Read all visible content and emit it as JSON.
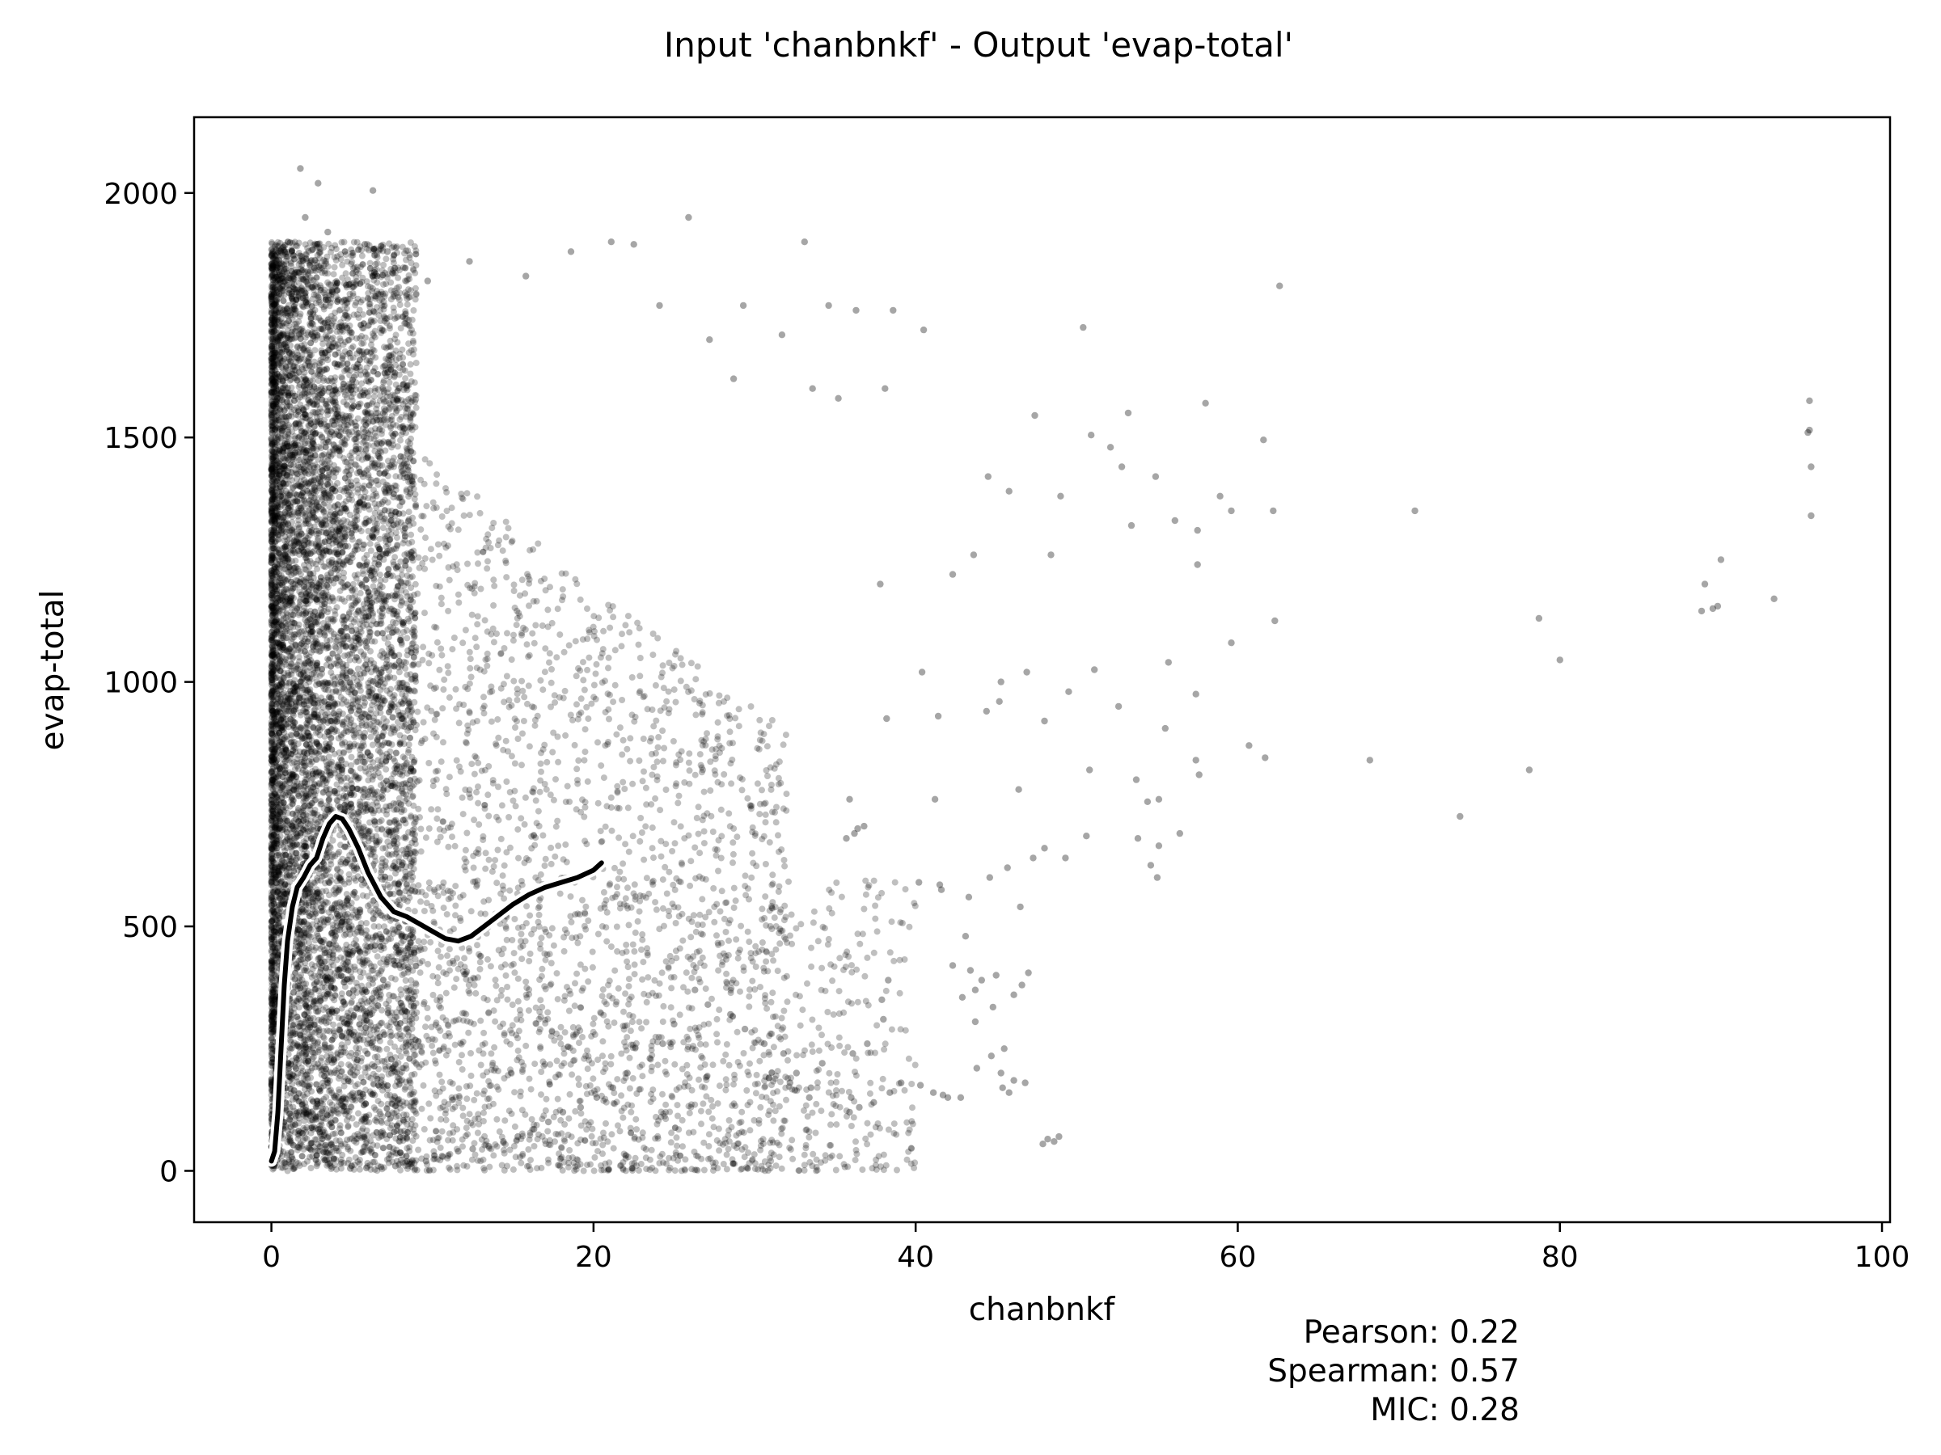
{
  "chart_data": {
    "type": "scatter",
    "title": "Input 'chanbnkf' - Output 'evap-total'",
    "xlabel": "chanbnkf",
    "ylabel": "evap-total",
    "xlim": [
      -4.8,
      100.5
    ],
    "ylim": [
      -105,
      2155
    ],
    "xticks": [
      0,
      20,
      40,
      60,
      80,
      100
    ],
    "yticks": [
      0,
      500,
      1000,
      1500,
      2000
    ],
    "grid": false,
    "legend": "none",
    "point_color": "#000000",
    "point_alpha": 0.25,
    "dense_cluster_description": "very dense band at chanbnkf 0-10, evap-total 0-1950",
    "series": [
      {
        "values": [
          [
            1.8,
            2050
          ],
          [
            2.9,
            2020
          ],
          [
            6.3,
            2005
          ],
          [
            2.1,
            1950
          ],
          [
            3.5,
            1920
          ],
          [
            5.8,
            1895
          ],
          [
            7.2,
            1880
          ],
          [
            25.9,
            1950
          ],
          [
            33.1,
            1900
          ],
          [
            21.1,
            1900
          ],
          [
            22.5,
            1895
          ],
          [
            18.6,
            1880
          ],
          [
            9.7,
            1820
          ],
          [
            12.3,
            1860
          ],
          [
            15.8,
            1830
          ],
          [
            62.6,
            1810
          ],
          [
            36.3,
            1760
          ],
          [
            38.6,
            1760
          ],
          [
            24.1,
            1770
          ],
          [
            29.3,
            1770
          ],
          [
            34.6,
            1770
          ],
          [
            50.4,
            1725
          ],
          [
            40.5,
            1720
          ],
          [
            31.7,
            1710
          ],
          [
            27.2,
            1700
          ],
          [
            58.0,
            1570
          ],
          [
            95.5,
            1575
          ],
          [
            53.2,
            1550
          ],
          [
            47.4,
            1545
          ],
          [
            50.9,
            1505
          ],
          [
            61.6,
            1495
          ],
          [
            95.5,
            1515
          ],
          [
            95.4,
            1510
          ],
          [
            33.6,
            1600
          ],
          [
            35.2,
            1580
          ],
          [
            38.1,
            1600
          ],
          [
            28.7,
            1620
          ],
          [
            52.1,
            1480
          ],
          [
            52.8,
            1440
          ],
          [
            54.9,
            1420
          ],
          [
            44.5,
            1420
          ],
          [
            45.8,
            1390
          ],
          [
            95.6,
            1440
          ],
          [
            49.0,
            1380
          ],
          [
            56.1,
            1330
          ],
          [
            57.5,
            1310
          ],
          [
            58.9,
            1380
          ],
          [
            59.6,
            1350
          ],
          [
            62.2,
            1350
          ],
          [
            71.0,
            1350
          ],
          [
            95.6,
            1340
          ],
          [
            53.4,
            1320
          ],
          [
            48.4,
            1260
          ],
          [
            43.6,
            1260
          ],
          [
            57.5,
            1240
          ],
          [
            90.0,
            1250
          ],
          [
            37.8,
            1200
          ],
          [
            42.3,
            1220
          ],
          [
            89.0,
            1200
          ],
          [
            62.3,
            1125
          ],
          [
            78.7,
            1130
          ],
          [
            89.5,
            1150
          ],
          [
            89.8,
            1155
          ],
          [
            93.3,
            1170
          ],
          [
            88.8,
            1145
          ],
          [
            80.0,
            1045
          ],
          [
            59.6,
            1080
          ],
          [
            55.7,
            1040
          ],
          [
            51.1,
            1025
          ],
          [
            46.9,
            1020
          ],
          [
            40.4,
            1020
          ],
          [
            45.3,
            1000
          ],
          [
            49.5,
            980
          ],
          [
            57.4,
            975
          ],
          [
            45.2,
            960
          ],
          [
            52.6,
            950
          ],
          [
            38.2,
            925
          ],
          [
            41.4,
            930
          ],
          [
            44.4,
            940
          ],
          [
            48.0,
            920
          ],
          [
            55.5,
            905
          ],
          [
            60.7,
            870
          ],
          [
            61.7,
            845
          ],
          [
            68.2,
            840
          ],
          [
            57.4,
            840
          ],
          [
            50.8,
            820
          ],
          [
            78.1,
            820
          ],
          [
            57.6,
            810
          ],
          [
            53.7,
            800
          ],
          [
            46.4,
            780
          ],
          [
            41.2,
            760
          ],
          [
            35.9,
            760
          ],
          [
            73.8,
            725
          ],
          [
            55.1,
            760
          ],
          [
            54.4,
            755
          ],
          [
            56.4,
            690
          ],
          [
            55.1,
            665
          ],
          [
            53.8,
            680
          ],
          [
            48.0,
            660
          ],
          [
            50.6,
            685
          ],
          [
            36.4,
            700
          ],
          [
            36.2,
            690
          ],
          [
            35.7,
            680
          ],
          [
            36.8,
            705
          ],
          [
            49.3,
            640
          ],
          [
            54.6,
            625
          ],
          [
            55.0,
            600
          ],
          [
            47.3,
            640
          ],
          [
            45.7,
            620
          ],
          [
            44.6,
            600
          ],
          [
            40.2,
            590
          ],
          [
            41.5,
            585
          ],
          [
            41.6,
            575
          ],
          [
            43.3,
            560
          ],
          [
            46.5,
            540
          ],
          [
            43.1,
            480
          ],
          [
            42.3,
            420
          ],
          [
            43.4,
            410
          ],
          [
            44.1,
            390
          ],
          [
            45.0,
            400
          ],
          [
            47.0,
            405
          ],
          [
            46.6,
            380
          ],
          [
            43.7,
            370
          ],
          [
            42.9,
            355
          ],
          [
            44.8,
            335
          ],
          [
            46.1,
            360
          ],
          [
            43.7,
            305
          ],
          [
            45.5,
            250
          ],
          [
            44.7,
            235
          ],
          [
            43.8,
            210
          ],
          [
            45.3,
            200
          ],
          [
            46.1,
            185
          ],
          [
            46.8,
            180
          ],
          [
            45.4,
            170
          ],
          [
            45.8,
            160
          ],
          [
            41.7,
            155
          ],
          [
            42.0,
            150
          ],
          [
            42.8,
            150
          ],
          [
            41.1,
            160
          ],
          [
            40.3,
            175
          ],
          [
            39.1,
            180
          ],
          [
            38.4,
            160
          ],
          [
            36.0,
            150
          ],
          [
            33.4,
            150
          ],
          [
            32.5,
            165
          ],
          [
            33.5,
            170
          ],
          [
            32.2,
            180
          ],
          [
            30.9,
            190
          ],
          [
            35.9,
            120
          ],
          [
            36.5,
            130
          ],
          [
            37.4,
            140
          ],
          [
            48.2,
            65
          ],
          [
            48.6,
            60
          ],
          [
            48.9,
            70
          ],
          [
            47.9,
            55
          ],
          [
            38.3,
            390
          ],
          [
            37.9,
            350
          ],
          [
            38.0,
            310
          ],
          [
            37.0,
            260
          ],
          [
            36.1,
            240
          ],
          [
            34.2,
            220
          ],
          [
            32.6,
            200
          ],
          [
            31.8,
            240
          ],
          [
            30.6,
            260
          ],
          [
            29.4,
            290
          ],
          [
            28.5,
            320
          ],
          [
            27.1,
            340
          ],
          [
            26.3,
            370
          ],
          [
            25.0,
            300
          ],
          [
            24.3,
            260
          ],
          [
            23.5,
            230
          ],
          [
            22.1,
            200
          ],
          [
            21.2,
            170
          ],
          [
            20.2,
            150
          ],
          [
            19.2,
            130
          ],
          [
            18.1,
            120
          ],
          [
            17.2,
            100
          ],
          [
            16.3,
            85
          ],
          [
            15.3,
            70
          ],
          [
            14.4,
            60
          ],
          [
            13.5,
            50
          ],
          [
            12.5,
            45
          ],
          [
            11.6,
            40
          ],
          [
            10.6,
            30
          ],
          [
            9.6,
            20
          ],
          [
            8.7,
            15
          ],
          [
            7.7,
            10
          ],
          [
            6.8,
            8
          ],
          [
            5.9,
            6
          ],
          [
            4.9,
            5
          ]
        ]
      }
    ],
    "trend_line": {
      "x": [
        0.0,
        0.2,
        0.4,
        0.6,
        0.8,
        1.0,
        1.3,
        1.6,
        2.0,
        2.4,
        2.8,
        3.2,
        3.6,
        4.0,
        4.4,
        4.8,
        5.4,
        6.0,
        6.8,
        7.6,
        8.4,
        9.2,
        10.0,
        10.8,
        11.6,
        12.4,
        13.2,
        14.0,
        15.0,
        16.0,
        17.0,
        18.0,
        19.0,
        20.0,
        20.5
      ],
      "y": [
        20,
        40,
        120,
        250,
        380,
        470,
        540,
        580,
        600,
        625,
        640,
        680,
        710,
        725,
        720,
        700,
        660,
        610,
        560,
        530,
        520,
        505,
        490,
        475,
        470,
        480,
        500,
        520,
        545,
        565,
        580,
        590,
        600,
        615,
        630
      ]
    },
    "annotations": [
      "Pearson: 0.22",
      "Spearman: 0.57",
      "MIC: 0.28"
    ]
  }
}
